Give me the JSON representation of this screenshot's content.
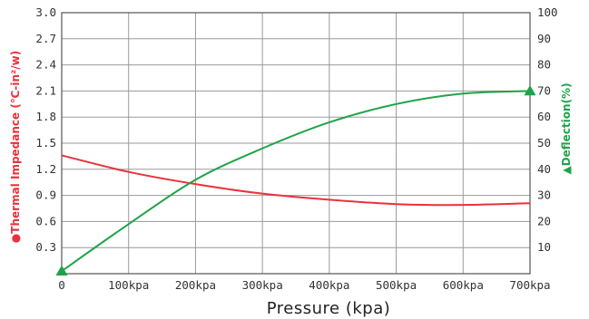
{
  "chart_data": {
    "type": "line",
    "xlabel": "Pressure (kpa)",
    "x_ticks": [
      "0",
      "100kpa",
      "200kpa",
      "300kpa",
      "400kpa",
      "500kpa",
      "600kpa",
      "700kpa"
    ],
    "xlim": [
      0,
      700
    ],
    "y_left": {
      "label": "Thermal Impedance (℃-in²/w)",
      "marker": "●",
      "range": [
        0,
        3.0
      ],
      "ticks": [
        "0.3",
        "0.6",
        "0.9",
        "1.2",
        "1.5",
        "1.8",
        "2.1",
        "2.4",
        "2.7",
        "3.0"
      ]
    },
    "y_right": {
      "label": "Deflection(%)",
      "marker": "▲",
      "range": [
        0,
        100
      ],
      "ticks": [
        "10",
        "20",
        "30",
        "40",
        "50",
        "60",
        "70",
        "80",
        "90",
        "100"
      ]
    },
    "grid": true,
    "series": [
      {
        "axis": "left",
        "color": "#e8323c",
        "x": [
          0,
          100,
          200,
          300,
          400,
          500,
          600,
          700
        ],
        "y": [
          1.36,
          1.17,
          1.03,
          0.92,
          0.85,
          0.8,
          0.79,
          0.81
        ]
      },
      {
        "axis": "right",
        "color": "#1fa34a",
        "marker": "triangle",
        "x": [
          0,
          100,
          200,
          300,
          400,
          500,
          600,
          700
        ],
        "y": [
          1,
          19,
          36,
          48,
          58,
          65,
          69,
          70
        ]
      }
    ]
  }
}
